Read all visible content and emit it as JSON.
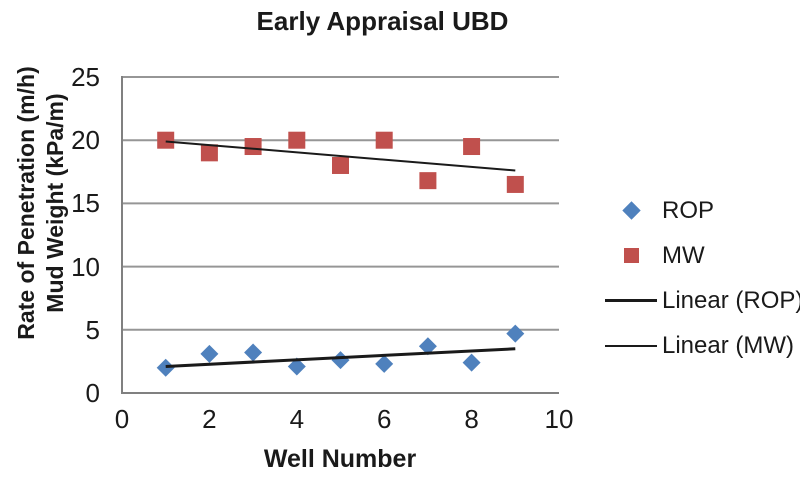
{
  "chart_data": {
    "type": "scatter",
    "title": "Early Appraisal UBD",
    "xlabel": "Well Number",
    "ylabel_line1": "Rate of Penetration (m/h)",
    "ylabel_line2": "Mud Weight (kPa/m)",
    "xlim": [
      0,
      10
    ],
    "ylim": [
      0,
      25
    ],
    "x_ticks": [
      0,
      2,
      4,
      6,
      8,
      10
    ],
    "y_ticks": [
      0,
      5,
      10,
      15,
      20,
      25
    ],
    "grid": true,
    "legend_position": "right",
    "x": [
      1,
      2,
      3,
      4,
      5,
      6,
      7,
      8,
      9
    ],
    "series": [
      {
        "name": "ROP",
        "marker": "diamond",
        "color": "#4f81bd",
        "values": [
          2.0,
          3.1,
          3.2,
          2.1,
          2.6,
          2.3,
          3.7,
          2.4,
          4.7
        ]
      },
      {
        "name": "MW",
        "marker": "square",
        "color": "#c0504d",
        "values": [
          20.0,
          19.0,
          19.5,
          20.0,
          18.0,
          20.0,
          16.8,
          19.5,
          16.5
        ]
      }
    ],
    "trendlines": [
      {
        "name": "Linear (ROP)",
        "series": "ROP",
        "x_start": 1,
        "y_start": 2.1,
        "x_end": 9,
        "y_end": 3.5,
        "color": "#1a1a1a",
        "width": 3
      },
      {
        "name": "Linear (MW)",
        "series": "MW",
        "x_start": 1,
        "y_start": 19.9,
        "x_end": 9,
        "y_end": 17.6,
        "color": "#1a1a1a",
        "width": 2
      }
    ],
    "legend": [
      {
        "label": "ROP",
        "marker": "diamond",
        "color": "#4f81bd"
      },
      {
        "label": "MW",
        "marker": "square",
        "color": "#c0504d"
      },
      {
        "label": "Linear (ROP)",
        "marker": "line-thick",
        "color": "#1a1a1a"
      },
      {
        "label": "Linear (MW)",
        "marker": "line-thin",
        "color": "#1a1a1a"
      }
    ],
    "colors": {
      "background": "#ffffff",
      "gridline": "#969696",
      "axis": "#808080",
      "text": "#1a1a1a"
    }
  }
}
